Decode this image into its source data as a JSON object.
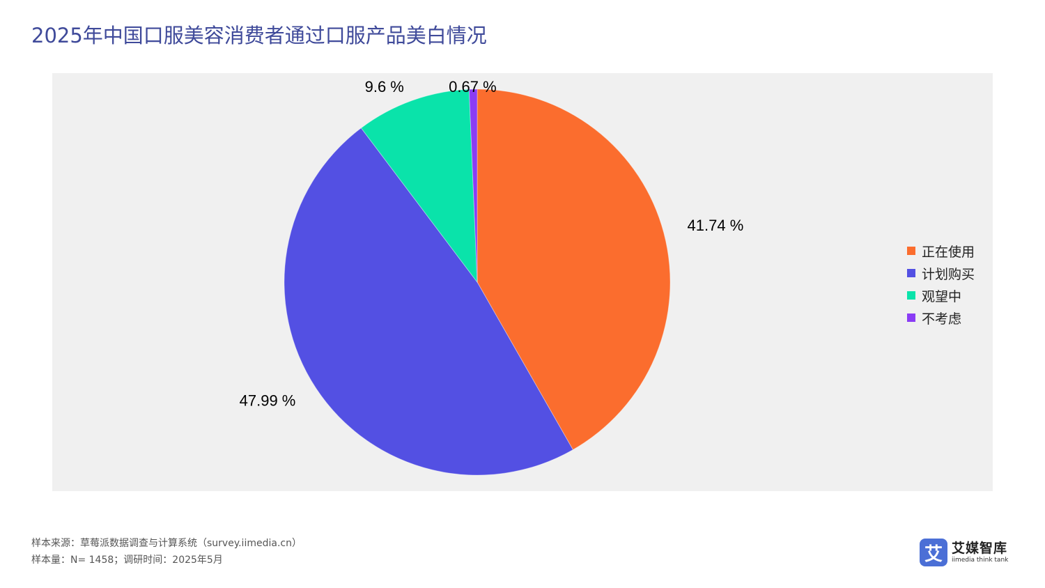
{
  "title": "2025年中国口服美容消费者通过口服产品美白情况",
  "chart_data": {
    "type": "pie",
    "categories": [
      "正在使用",
      "计划购买",
      "观望中",
      "不考虑"
    ],
    "values": [
      41.74,
      47.99,
      9.6,
      0.67
    ],
    "labels": [
      "41.74 %",
      "47.99 %",
      "9.6 %",
      "0.67 %"
    ],
    "colors": [
      "#fb6d2e",
      "#5350e3",
      "#0ae3aa",
      "#8a3cf5"
    ],
    "legend_position": "right",
    "background": "#f0f0f0"
  },
  "footer": {
    "source": "样本来源：草莓派数据调查与计算系统（survey.iimedia.cn）",
    "sample": "样本量：N= 1458；调研时间：2025年5月"
  },
  "logo": {
    "mark": "艾",
    "name": "艾媒智库",
    "sub": "iimedia think tank"
  }
}
